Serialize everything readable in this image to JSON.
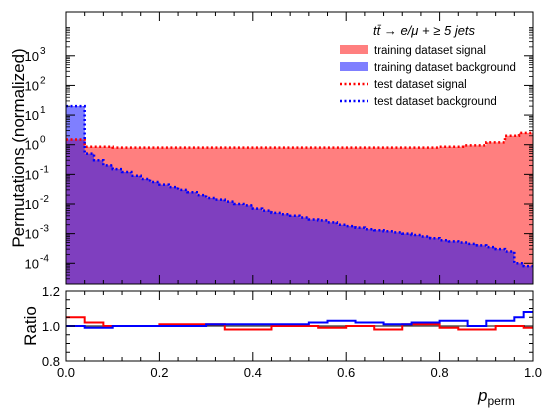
{
  "chart_data": [
    {
      "type": "area",
      "title": "",
      "xlabel": "",
      "ylabel": "Permutations (normalized)",
      "ylog": true,
      "xlim": [
        0,
        1
      ],
      "ylim": [
        2e-05,
        30000
      ],
      "y_ticks": [
        {
          "v": 0.0001,
          "mant": "10",
          "exp": "-4"
        },
        {
          "v": 0.001,
          "mant": "10",
          "exp": "-3"
        },
        {
          "v": 0.01,
          "mant": "10",
          "exp": "-2"
        },
        {
          "v": 0.1,
          "mant": "10",
          "exp": "-1"
        },
        {
          "v": 1,
          "mant": "10",
          "exp": "0"
        },
        {
          "v": 10,
          "mant": "10",
          "exp": "1"
        },
        {
          "v": 100,
          "mant": "10",
          "exp": "2"
        },
        {
          "v": 1000,
          "mant": "10",
          "exp": "3"
        }
      ],
      "legend": {
        "placement": "top-right",
        "header": "tt̄ → e/μ + ≥ 5 jets",
        "entries": [
          {
            "label": "training dataset signal",
            "style": "fill",
            "color": "#ff7f7f"
          },
          {
            "label": "training dataset background",
            "style": "fill",
            "color": "#7f7fff"
          },
          {
            "label": "test dataset signal",
            "style": "dotted",
            "color": "#ff0000"
          },
          {
            "label": "test dataset background",
            "style": "dotted",
            "color": "#0000ff"
          }
        ]
      },
      "bin_edges": [
        0,
        0.04,
        1
      ],
      "series": [
        {
          "key": "signal",
          "color": "#ff7f7f",
          "line_color": "#ff0000",
          "bins": [
            [
              0,
              0.04,
              1.5
            ],
            [
              0.04,
              0.08,
              0.85
            ],
            [
              0.08,
              0.1,
              0.85
            ],
            [
              0.1,
              0.5,
              0.8
            ],
            [
              0.5,
              0.7,
              0.8
            ],
            [
              0.7,
              0.8,
              0.8
            ],
            [
              0.8,
              0.85,
              0.85
            ],
            [
              0.85,
              0.9,
              0.95
            ],
            [
              0.9,
              0.94,
              1.2
            ],
            [
              0.94,
              0.97,
              2.0
            ],
            [
              0.97,
              1.0,
              2.5
            ]
          ]
        },
        {
          "key": "background",
          "color": "#7f3fbf",
          "line_color": "#0000ff",
          "bins": [
            [
              0,
              0.04,
              20
            ],
            [
              0.04,
              0.06,
              0.5
            ],
            [
              0.06,
              0.08,
              0.3
            ],
            [
              0.08,
              0.1,
              0.2
            ],
            [
              0.1,
              0.12,
              0.15
            ],
            [
              0.12,
              0.14,
              0.12
            ],
            [
              0.14,
              0.16,
              0.09
            ],
            [
              0.16,
              0.18,
              0.07
            ],
            [
              0.18,
              0.2,
              0.055
            ],
            [
              0.2,
              0.22,
              0.045
            ],
            [
              0.22,
              0.24,
              0.037
            ],
            [
              0.24,
              0.26,
              0.03
            ],
            [
              0.26,
              0.28,
              0.025
            ],
            [
              0.28,
              0.3,
              0.02
            ],
            [
              0.3,
              0.32,
              0.016
            ],
            [
              0.32,
              0.34,
              0.014
            ],
            [
              0.34,
              0.36,
              0.012
            ],
            [
              0.36,
              0.38,
              0.01
            ],
            [
              0.38,
              0.4,
              0.009
            ],
            [
              0.4,
              0.42,
              0.007
            ],
            [
              0.42,
              0.44,
              0.006
            ],
            [
              0.44,
              0.46,
              0.005
            ],
            [
              0.46,
              0.48,
              0.0045
            ],
            [
              0.48,
              0.5,
              0.004
            ],
            [
              0.5,
              0.52,
              0.0035
            ],
            [
              0.52,
              0.54,
              0.003
            ],
            [
              0.54,
              0.56,
              0.0028
            ],
            [
              0.56,
              0.58,
              0.0024
            ],
            [
              0.58,
              0.6,
              0.002
            ],
            [
              0.6,
              0.62,
              0.0018
            ],
            [
              0.62,
              0.64,
              0.0016
            ],
            [
              0.64,
              0.66,
              0.0014
            ],
            [
              0.66,
              0.68,
              0.0013
            ],
            [
              0.68,
              0.7,
              0.0012
            ],
            [
              0.7,
              0.72,
              0.0011
            ],
            [
              0.72,
              0.74,
              0.001
            ],
            [
              0.74,
              0.76,
              0.0009
            ],
            [
              0.76,
              0.78,
              0.0008
            ],
            [
              0.78,
              0.8,
              0.0007
            ],
            [
              0.8,
              0.82,
              0.0006
            ],
            [
              0.82,
              0.84,
              0.00055
            ],
            [
              0.84,
              0.86,
              0.0005
            ],
            [
              0.86,
              0.88,
              0.00045
            ],
            [
              0.88,
              0.9,
              0.0004
            ],
            [
              0.9,
              0.92,
              0.00035
            ],
            [
              0.92,
              0.94,
              0.0003
            ],
            [
              0.94,
              0.96,
              0.00025
            ],
            [
              0.96,
              0.98,
              0.0001
            ],
            [
              0.98,
              1.0,
              8e-05
            ]
          ]
        }
      ]
    },
    {
      "type": "line",
      "title": "",
      "xlabel": "p_perm",
      "xlabel_main": "p",
      "xlabel_sub": "perm",
      "ylabel": "Ratio",
      "xlim": [
        0,
        1
      ],
      "ylim": [
        0.8,
        1.2
      ],
      "x_ticks": [
        "0.0",
        "0.2",
        "0.4",
        "0.6",
        "0.8",
        "1.0"
      ],
      "y_ticks": [
        "0.8",
        "1.0",
        "1.2"
      ],
      "series": [
        {
          "key": "signal-ratio",
          "color": "#ff0000",
          "bins": [
            [
              0,
              0.04,
              1.05
            ],
            [
              0.04,
              0.08,
              1.02
            ],
            [
              0.08,
              0.2,
              1.0
            ],
            [
              0.2,
              0.34,
              1.01
            ],
            [
              0.34,
              0.44,
              0.98
            ],
            [
              0.44,
              0.54,
              1.0
            ],
            [
              0.54,
              0.6,
              0.99
            ],
            [
              0.6,
              0.66,
              1.0
            ],
            [
              0.66,
              0.72,
              0.98
            ],
            [
              0.72,
              0.8,
              1.01
            ],
            [
              0.8,
              0.84,
              0.99
            ],
            [
              0.84,
              0.92,
              0.98
            ],
            [
              0.92,
              0.98,
              1.0
            ],
            [
              0.98,
              1.0,
              0.99
            ]
          ]
        },
        {
          "key": "background-ratio",
          "color": "#0000ff",
          "bins": [
            [
              0,
              0.04,
              1.0
            ],
            [
              0.04,
              0.1,
              0.99
            ],
            [
              0.1,
              0.2,
              1.0
            ],
            [
              0.2,
              0.3,
              1.0
            ],
            [
              0.3,
              0.42,
              1.01
            ],
            [
              0.42,
              0.52,
              1.01
            ],
            [
              0.52,
              0.56,
              1.02
            ],
            [
              0.56,
              0.62,
              1.03
            ],
            [
              0.62,
              0.68,
              1.02
            ],
            [
              0.68,
              0.74,
              1.01
            ],
            [
              0.74,
              0.8,
              1.02
            ],
            [
              0.8,
              0.86,
              1.03
            ],
            [
              0.86,
              0.9,
              1.0
            ],
            [
              0.9,
              0.96,
              1.03
            ],
            [
              0.96,
              0.98,
              1.05
            ],
            [
              0.98,
              1.0,
              1.08
            ]
          ]
        }
      ]
    }
  ]
}
